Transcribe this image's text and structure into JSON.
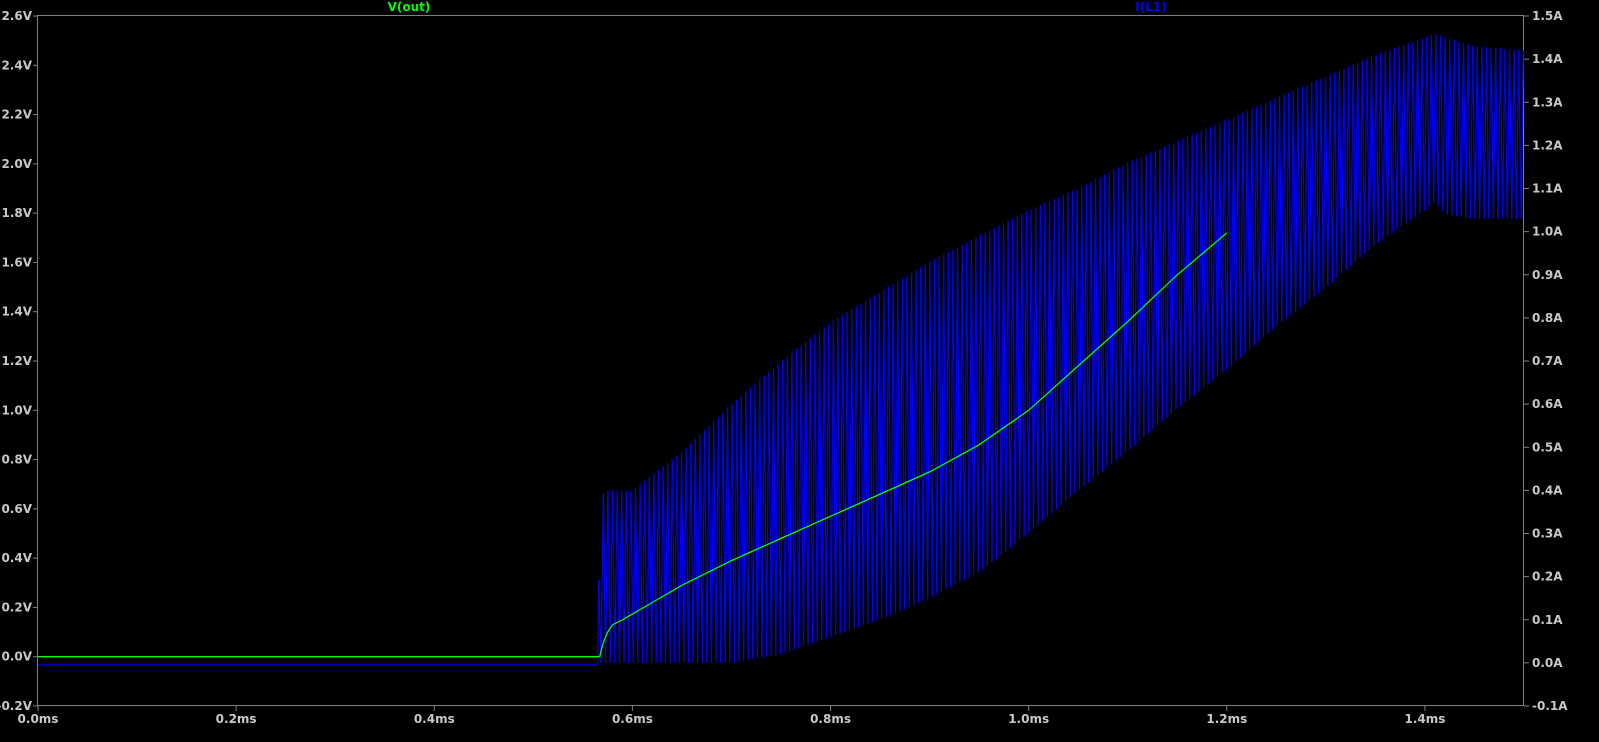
{
  "chart_data": {
    "type": "line",
    "title": "",
    "background": "#000000",
    "frame_color": "#808080",
    "tick_color": "#c8c8c8",
    "grid": false,
    "x": {
      "label": "",
      "min": 0.0,
      "max": 1.5,
      "unit": "ms",
      "ticks": [
        "0.0ms",
        "0.2ms",
        "0.4ms",
        "0.6ms",
        "0.8ms",
        "1.0ms",
        "1.2ms",
        "1.4ms"
      ],
      "tick_values": [
        0.0,
        0.2,
        0.4,
        0.6,
        0.8,
        1.0,
        1.2,
        1.4
      ]
    },
    "y_left": {
      "label": "",
      "min": -0.2,
      "max": 2.6,
      "unit": "V",
      "ticks": [
        "-0.2V",
        "0.0V",
        "0.2V",
        "0.4V",
        "0.6V",
        "0.8V",
        "1.0V",
        "1.2V",
        "1.4V",
        "1.6V",
        "1.8V",
        "2.0V",
        "2.2V",
        "2.4V",
        "2.6V"
      ],
      "tick_values": [
        -0.2,
        0.0,
        0.2,
        0.4,
        0.6,
        0.8,
        1.0,
        1.2,
        1.4,
        1.6,
        1.8,
        2.0,
        2.2,
        2.4,
        2.6
      ]
    },
    "y_right": {
      "label": "",
      "min": -0.1,
      "max": 1.5,
      "unit": "A",
      "ticks": [
        "-0.1A",
        "0.0A",
        "0.1A",
        "0.2A",
        "0.3A",
        "0.4A",
        "0.5A",
        "0.6A",
        "0.7A",
        "0.8A",
        "0.9A",
        "1.0A",
        "1.1A",
        "1.2A",
        "1.3A",
        "1.4A",
        "1.5A"
      ],
      "tick_values": [
        -0.1,
        0.0,
        0.1,
        0.2,
        0.3,
        0.4,
        0.5,
        0.6,
        0.7,
        0.8,
        0.9,
        1.0,
        1.1,
        1.2,
        1.3,
        1.4,
        1.5
      ]
    },
    "series": [
      {
        "name": "V(out)",
        "axis": "left",
        "color": "#00ff00",
        "kind": "line",
        "x": [
          0.0,
          0.56,
          0.567,
          0.57,
          0.575,
          0.58,
          0.59,
          0.62,
          0.65,
          0.7,
          0.75,
          0.8,
          0.85,
          0.9,
          0.95,
          1.0,
          1.05,
          1.1,
          1.15,
          1.2
        ],
        "y": [
          0.0,
          0.0,
          0.0,
          0.05,
          0.1,
          0.13,
          0.15,
          0.22,
          0.29,
          0.39,
          0.48,
          0.57,
          0.66,
          0.75,
          0.86,
          1.0,
          1.18,
          1.36,
          1.55,
          1.72
        ]
      },
      {
        "name": "I(L1)",
        "axis": "right",
        "color": "#0000ff",
        "kind": "ripple-envelope",
        "x": [
          0.0,
          0.565,
          0.567,
          0.575,
          0.6,
          0.65,
          0.7,
          0.75,
          0.8,
          0.85,
          0.9,
          0.95,
          1.0,
          1.05,
          1.1,
          1.15,
          1.2,
          1.25,
          1.3,
          1.35,
          1.4,
          1.41,
          1.42,
          1.45,
          1.5
        ],
        "upper": [
          -0.005,
          -0.005,
          0.39,
          0.4,
          0.4,
          0.49,
          0.6,
          0.7,
          0.79,
          0.86,
          0.93,
          0.99,
          1.05,
          1.1,
          1.16,
          1.21,
          1.26,
          1.31,
          1.36,
          1.41,
          1.45,
          1.46,
          1.45,
          1.43,
          1.42
        ],
        "lower": [
          -0.005,
          -0.005,
          0.0,
          0.0,
          0.0,
          0.0,
          0.0,
          0.02,
          0.06,
          0.1,
          0.15,
          0.21,
          0.3,
          0.4,
          0.49,
          0.59,
          0.68,
          0.78,
          0.87,
          0.97,
          1.05,
          1.07,
          1.04,
          1.03,
          1.03
        ]
      }
    ]
  }
}
